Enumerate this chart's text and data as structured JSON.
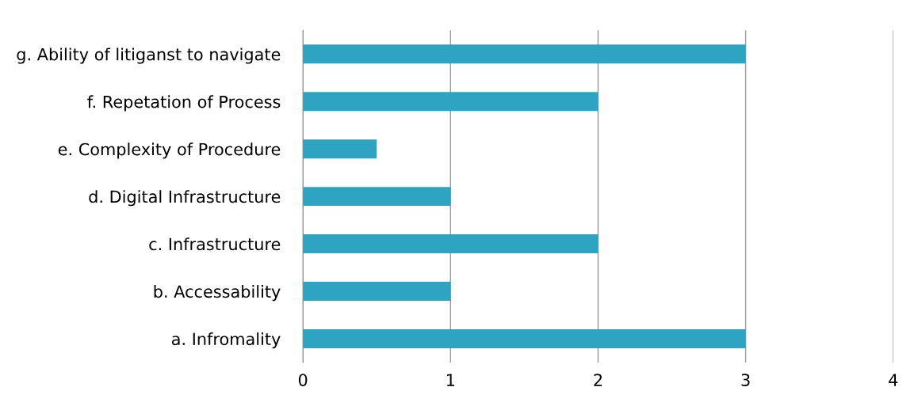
{
  "chart_data": {
    "type": "bar",
    "orientation": "horizontal",
    "categories": [
      "g. Ability of litiganst to navigate",
      "f. Repetation of Process",
      "e. Complexity of Procedure",
      "d. Digital Infrastructure",
      "c. Infrastructure",
      "b. Accessability",
      "a. Infromality"
    ],
    "values": [
      3,
      2,
      0.5,
      1,
      2,
      1,
      3
    ],
    "color": "#2ea3c2",
    "xlim": [
      0,
      4
    ],
    "xticks": [
      0,
      1,
      2,
      3,
      4
    ],
    "grid": "x"
  }
}
